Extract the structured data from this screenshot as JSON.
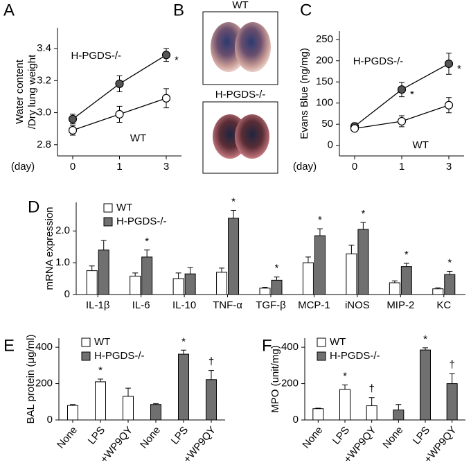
{
  "chart_data": [
    {
      "type": "line",
      "panel": "A",
      "ylabel": [
        "Water content",
        "/Dry lung weight"
      ],
      "xlabel": "(day)",
      "categories": [
        "0",
        "1",
        "3"
      ],
      "ylim": [
        2.73,
        3.53
      ],
      "yticks": [
        2.8,
        {
          "value": 3,
          "label": "3.0"
        },
        3.2,
        3.4
      ],
      "series": [
        {
          "name": "H-PGDS-/-",
          "color": "#555555",
          "values": [
            2.96,
            3.18,
            3.36
          ],
          "errors": [
            0.03,
            0.05,
            0.04
          ],
          "sig": [
            null,
            null,
            "*"
          ]
        },
        {
          "name": "WT",
          "color": "#ffffff",
          "values": [
            2.89,
            2.99,
            3.09
          ],
          "errors": [
            0.03,
            0.05,
            0.06
          ],
          "sig": [
            null,
            null,
            null
          ]
        }
      ]
    },
    {
      "type": "line",
      "panel": "C",
      "ylabel": [
        "Evans Blue (ng/mg)"
      ],
      "xlabel": "(day)",
      "categories": [
        "0",
        "1",
        "3"
      ],
      "ylim": [
        -25,
        270
      ],
      "yticks": [
        0,
        50,
        100,
        150,
        200,
        250
      ],
      "series": [
        {
          "name": "H-PGDS-/-",
          "color": "#555555",
          "values": [
            45,
            132,
            193
          ],
          "errors": [
            8,
            17,
            25
          ],
          "sig": [
            null,
            "*",
            "*"
          ]
        },
        {
          "name": "WT",
          "color": "#ffffff",
          "values": [
            40,
            57,
            95
          ],
          "errors": [
            5,
            13,
            18
          ],
          "sig": [
            null,
            null,
            null
          ]
        }
      ]
    },
    {
      "type": "bar",
      "panel": "D",
      "ylabel": [
        "mRNA expression"
      ],
      "categories": [
        "IL-1β",
        "IL-6",
        "IL-10",
        "TNF-α",
        "TGF-β",
        "MCP-1",
        "iNOS",
        "MIP-2",
        "KC"
      ],
      "ylim": [
        0,
        2.9
      ],
      "yticks": [
        0,
        {
          "value": 1,
          "label": "1.0"
        },
        {
          "value": 2,
          "label": "2.0"
        }
      ],
      "series": [
        {
          "name": "WT",
          "color": "#ffffff",
          "values": [
            0.75,
            0.58,
            0.5,
            0.7,
            0.2,
            1.0,
            1.28,
            0.37,
            0.18
          ],
          "errors": [
            0.15,
            0.1,
            0.18,
            0.13,
            0.03,
            0.18,
            0.27,
            0.06,
            0.03
          ],
          "sig": [
            null,
            null,
            null,
            null,
            null,
            null,
            null,
            null,
            null
          ]
        },
        {
          "name": "H-PGDS-/-",
          "color": "#707070",
          "values": [
            1.4,
            1.18,
            0.65,
            2.4,
            0.45,
            1.85,
            2.05,
            0.88,
            0.63
          ],
          "errors": [
            0.3,
            0.22,
            0.2,
            0.25,
            0.1,
            0.22,
            0.22,
            0.1,
            0.1
          ],
          "sig": [
            null,
            "*",
            null,
            "*",
            "*",
            "*",
            "*",
            "*",
            "*"
          ]
        }
      ]
    },
    {
      "type": "bar",
      "panel": "E",
      "ylabel": [
        "BAL protein (μg/ml)"
      ],
      "categories": [
        "None",
        "LPS",
        "+WP9QY",
        "None",
        "LPS",
        "+WP9QY"
      ],
      "ylim": [
        0,
        450
      ],
      "yticks": [
        0,
        200,
        400
      ],
      "series": [
        {
          "name": "WT",
          "color": "#ffffff",
          "values": [
            80,
            210,
            130,
            null,
            null,
            null
          ],
          "errors": [
            5,
            15,
            45,
            null,
            null,
            null
          ],
          "sig": [
            null,
            "*",
            null,
            null,
            null,
            null
          ]
        },
        {
          "name": "H-PGDS-/-",
          "color": "#707070",
          "values": [
            null,
            null,
            null,
            85,
            362,
            222
          ],
          "errors": [
            null,
            null,
            null,
            5,
            22,
            50
          ],
          "sig": [
            null,
            null,
            null,
            null,
            "*",
            "†"
          ]
        }
      ]
    },
    {
      "type": "bar",
      "panel": "F",
      "ylabel": [
        "MPO (unit/mg)"
      ],
      "categories": [
        "None",
        "LPS",
        "+WP9QY",
        "None",
        "LPS",
        "+WP9QY"
      ],
      "ylim": [
        0,
        450
      ],
      "yticks": [
        0,
        200,
        400
      ],
      "series": [
        {
          "name": "WT",
          "color": "#ffffff",
          "values": [
            62,
            168,
            78,
            null,
            null,
            null
          ],
          "errors": [
            3,
            25,
            45,
            null,
            null,
            null
          ],
          "sig": [
            null,
            "*",
            "†",
            null,
            null,
            null
          ]
        },
        {
          "name": "H-PGDS-/-",
          "color": "#707070",
          "values": [
            null,
            null,
            null,
            55,
            385,
            200
          ],
          "errors": [
            null,
            null,
            null,
            30,
            12,
            55
          ],
          "sig": [
            null,
            null,
            null,
            null,
            "*",
            "†"
          ]
        }
      ]
    }
  ],
  "panel_b": {
    "panel": "B",
    "images": [
      {
        "label": "WT"
      },
      {
        "label": "H-PGDS-/-"
      }
    ]
  }
}
